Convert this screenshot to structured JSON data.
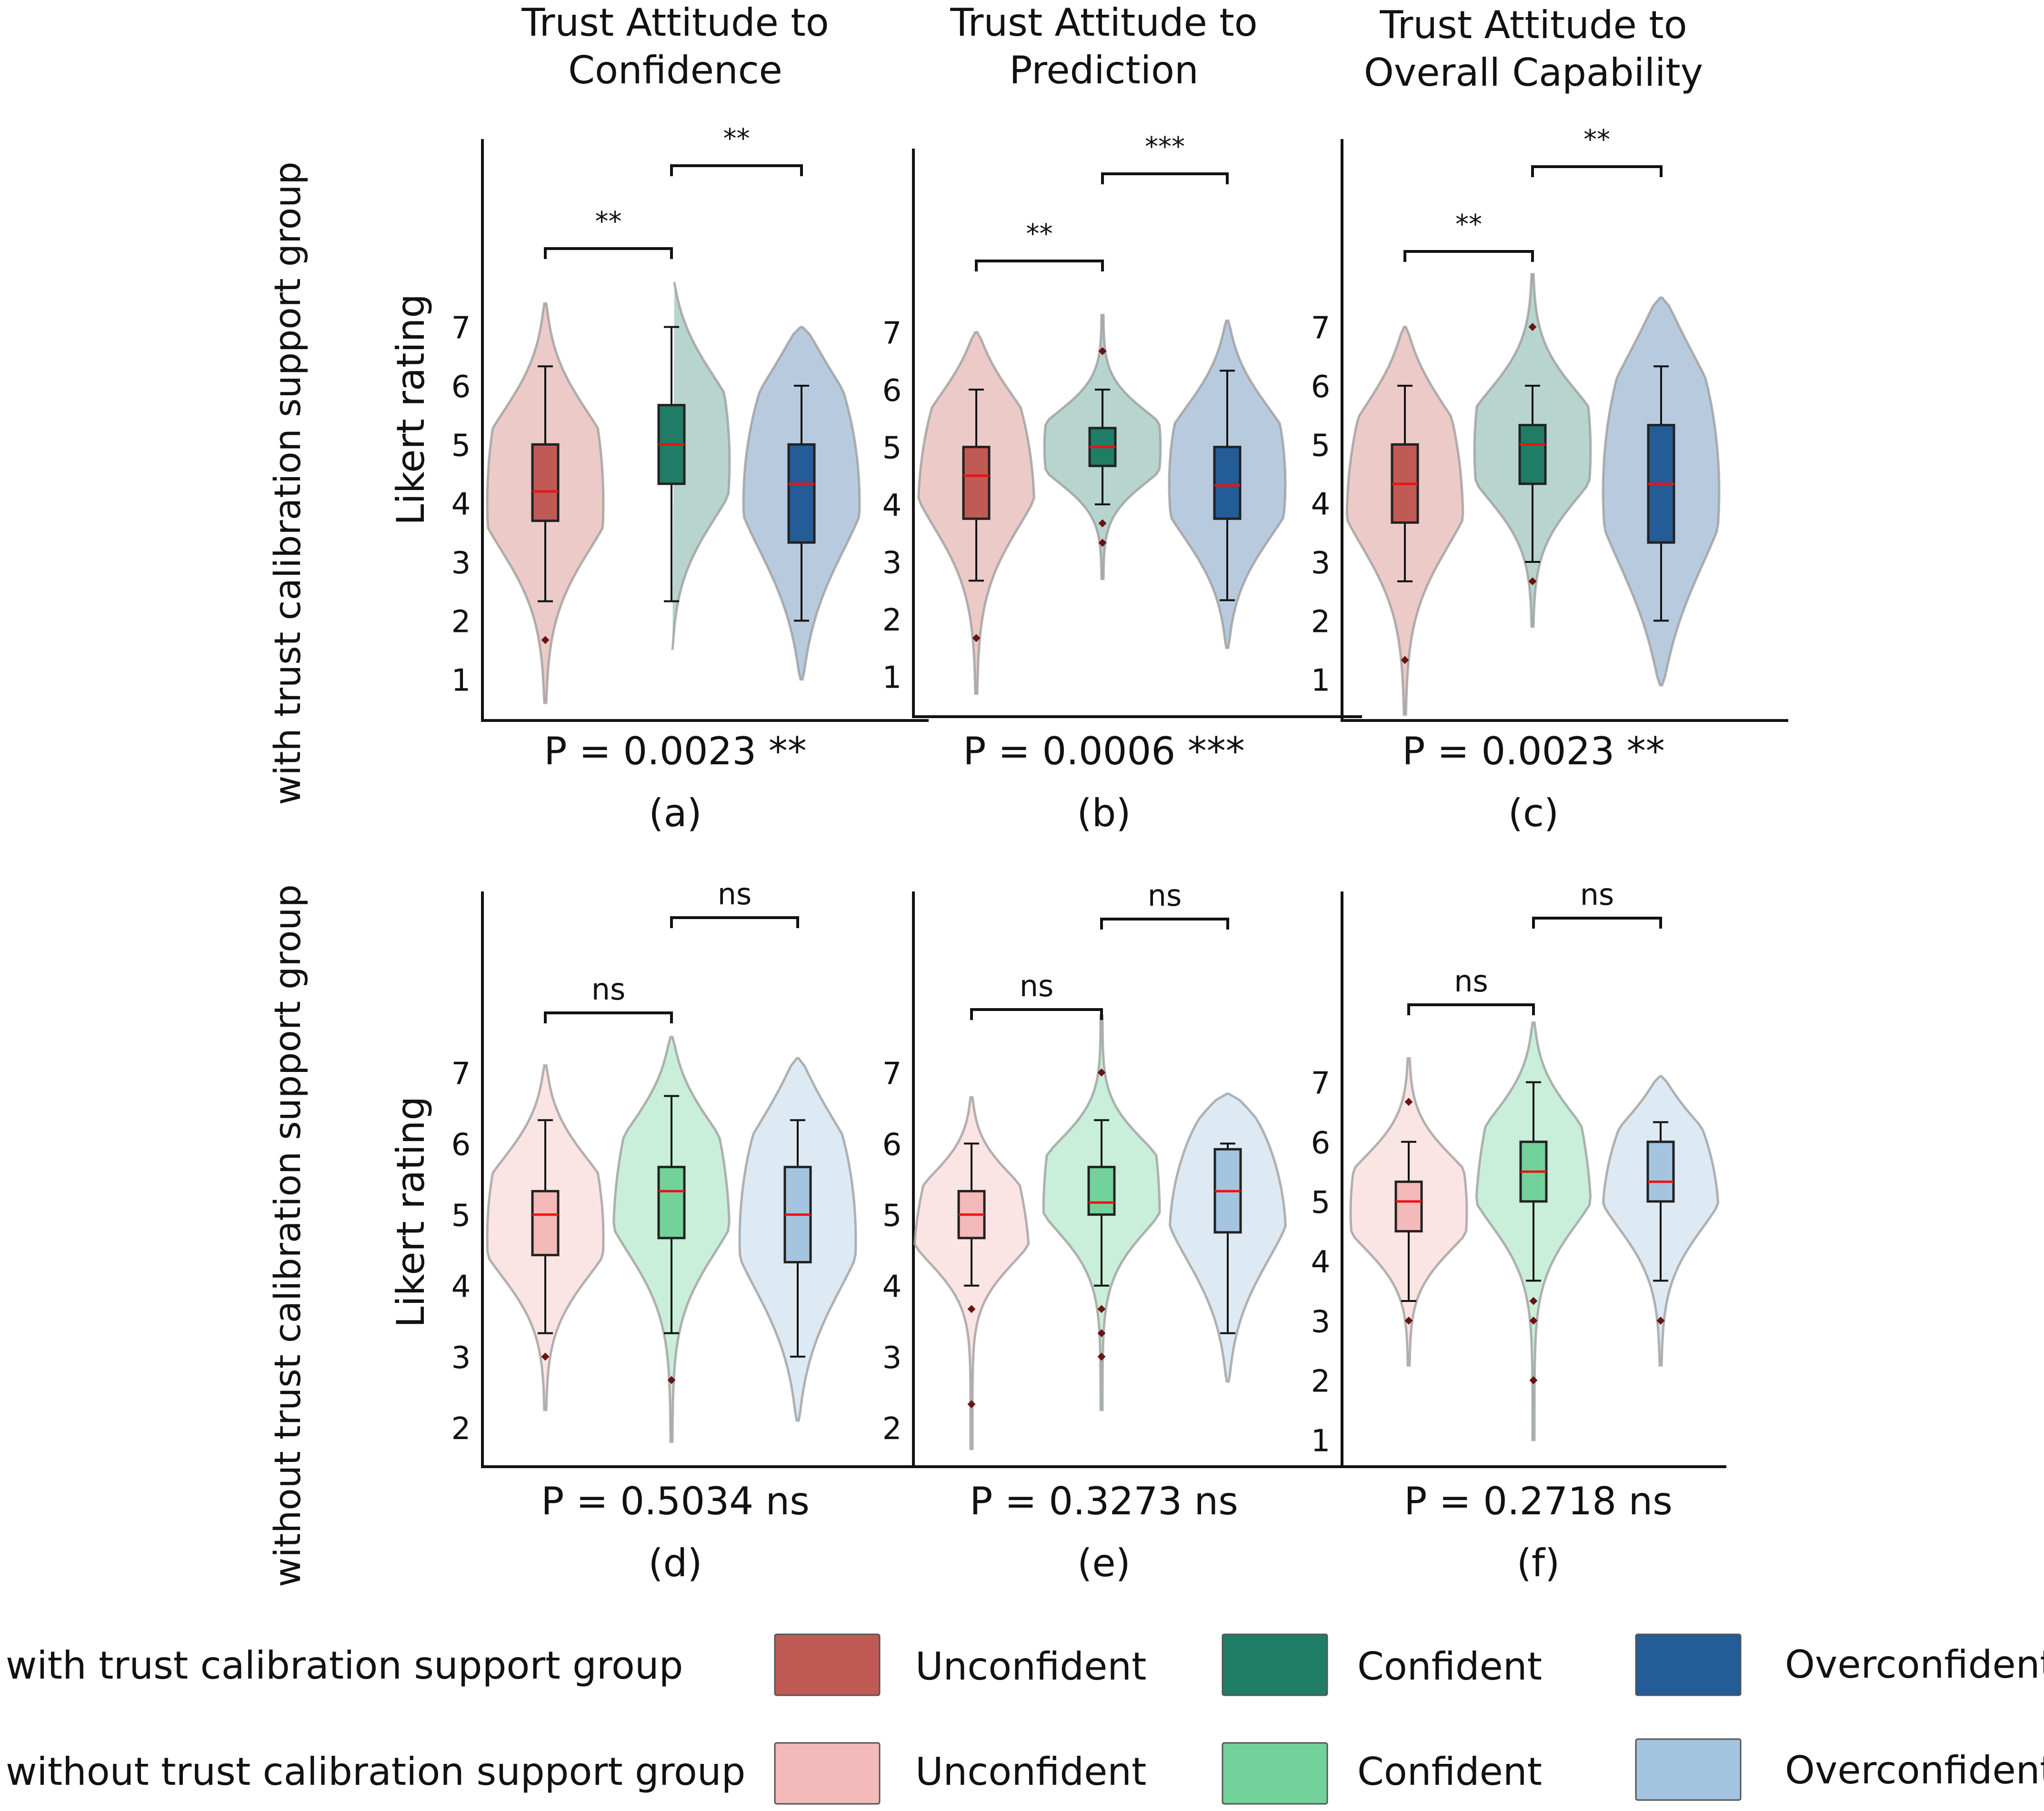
{
  "figure": {
    "row_labels": [
      "with trust calibration support group",
      "without trust calibration support group"
    ],
    "ylabel": "Likert rating"
  },
  "legend": {
    "groups": [
      "with trust calibration support group",
      "without trust calibration support group"
    ],
    "categories": [
      "Unconfident",
      "Confident",
      "Overconfident"
    ]
  },
  "colors": {
    "with": [
      "#c05a55",
      "#1f7d66",
      "#235c97"
    ],
    "without": [
      "#f4b9b9",
      "#72d39a",
      "#a5c4e0"
    ]
  },
  "chart_data": [
    {
      "id": "a",
      "type": "violin",
      "title": [
        "Trust Attitude to",
        "Confidence"
      ],
      "group": "with",
      "caption": "(a)",
      "pvalue": "P = 0.0023 **",
      "yticks": [
        1,
        2,
        3,
        4,
        5,
        6,
        7
      ],
      "ylim": [
        0.3,
        10.2
      ],
      "brackets": [
        "**",
        "**"
      ],
      "series": [
        {
          "name": "Unconfident",
          "q1": 3.7,
          "median": 4.2,
          "q3": 5.0,
          "whisker_low": 2.33,
          "whisker_high": 6.33,
          "fliers": [
            1.67
          ],
          "violin_min": 0.6,
          "violin_max": 7.4,
          "mode": 4.5
        },
        {
          "name": "Confident",
          "q1": 4.33,
          "median": 5.0,
          "q3": 5.67,
          "whisker_low": 2.33,
          "whisker_high": 7.0,
          "fliers": [],
          "violin_min": 1.5,
          "violin_max": 7.9,
          "mode": 5.0
        },
        {
          "name": "Overconfident",
          "q1": 3.33,
          "median": 4.33,
          "q3": 5.0,
          "whisker_low": 2.0,
          "whisker_high": 6.0,
          "fliers": [],
          "violin_min": 1.0,
          "violin_max": 7.0,
          "mode": 5.0
        }
      ]
    },
    {
      "id": "b",
      "type": "violin",
      "title": [
        "Trust Attitude to",
        "Prediction"
      ],
      "group": "with",
      "caption": "(b)",
      "pvalue": "P = 0.0006 ***",
      "yticks": [
        1,
        2,
        3,
        4,
        5,
        6,
        7
      ],
      "ylim": [
        0.3,
        10.2
      ],
      "brackets": [
        "**",
        "***"
      ],
      "series": [
        {
          "name": "Unconfident",
          "q1": 3.75,
          "median": 4.5,
          "q3": 5.0,
          "whisker_low": 2.67,
          "whisker_high": 6.0,
          "fliers": [
            1.67
          ],
          "violin_min": 0.7,
          "violin_max": 7.0,
          "mode": 5.0
        },
        {
          "name": "Confident",
          "q1": 4.67,
          "median": 5.0,
          "q3": 5.33,
          "whisker_low": 4.0,
          "whisker_high": 6.0,
          "fliers": [
            6.67,
            3.67,
            3.33
          ],
          "violin_min": 2.7,
          "violin_max": 7.3,
          "mode": 5.0
        },
        {
          "name": "Overconfident",
          "q1": 3.75,
          "median": 4.33,
          "q3": 5.0,
          "whisker_low": 2.33,
          "whisker_high": 6.33,
          "fliers": [],
          "violin_min": 1.5,
          "violin_max": 7.2,
          "mode": 4.67
        }
      ]
    },
    {
      "id": "c",
      "type": "violin",
      "title": [
        "Trust Attitude to",
        "Overall Capability"
      ],
      "group": "with",
      "caption": "(c)",
      "pvalue": "P = 0.0023 **",
      "yticks": [
        1,
        2,
        3,
        4,
        5,
        6,
        7
      ],
      "ylim": [
        0.3,
        10.2
      ],
      "brackets": [
        "**",
        "**"
      ],
      "series": [
        {
          "name": "Unconfident",
          "q1": 3.67,
          "median": 4.33,
          "q3": 5.0,
          "whisker_low": 2.67,
          "whisker_high": 6.0,
          "fliers": [
            1.33
          ],
          "violin_min": 0.4,
          "violin_max": 7.0,
          "mode": 4.67
        },
        {
          "name": "Confident",
          "q1": 4.33,
          "median": 5.0,
          "q3": 5.33,
          "whisker_low": 3.0,
          "whisker_high": 6.0,
          "fliers": [
            7.0,
            2.67
          ],
          "violin_min": 1.9,
          "violin_max": 7.9,
          "mode": 5.0
        },
        {
          "name": "Overconfident",
          "q1": 3.33,
          "median": 4.33,
          "q3": 5.33,
          "whisker_low": 2.0,
          "whisker_high": 6.33,
          "fliers": [],
          "violin_min": 0.9,
          "violin_max": 7.5,
          "mode": 5.0
        }
      ]
    },
    {
      "id": "d",
      "type": "violin",
      "title": [],
      "group": "without",
      "caption": "(d)",
      "pvalue": "P = 0.5034 ns",
      "yticks": [
        2,
        3,
        4,
        5,
        6,
        7
      ],
      "ylim": [
        1.45,
        9.55
      ],
      "brackets": [
        "ns",
        "ns"
      ],
      "series": [
        {
          "name": "Unconfident",
          "q1": 4.43,
          "median": 5.0,
          "q3": 5.33,
          "whisker_low": 3.33,
          "whisker_high": 6.33,
          "fliers": [
            3.0
          ],
          "violin_min": 2.25,
          "violin_max": 7.1,
          "mode": 5.0
        },
        {
          "name": "Confident",
          "q1": 4.67,
          "median": 5.33,
          "q3": 5.67,
          "whisker_low": 3.33,
          "whisker_high": 6.67,
          "fliers": [
            2.67
          ],
          "violin_min": 1.8,
          "violin_max": 7.5,
          "mode": 5.5
        },
        {
          "name": "Overconfident",
          "q1": 4.33,
          "median": 5.0,
          "q3": 5.67,
          "whisker_low": 3.0,
          "whisker_high": 6.33,
          "fliers": [],
          "violin_min": 2.1,
          "violin_max": 7.2,
          "mode": 5.33
        }
      ]
    },
    {
      "id": "e",
      "type": "violin",
      "title": [],
      "group": "without",
      "caption": "(e)",
      "pvalue": "P = 0.3273 ns",
      "yticks": [
        2,
        3,
        4,
        5,
        6,
        7
      ],
      "ylim": [
        1.45,
        9.55
      ],
      "brackets": [
        "ns",
        "ns"
      ],
      "series": [
        {
          "name": "Unconfident",
          "q1": 4.67,
          "median": 5.0,
          "q3": 5.33,
          "whisker_low": 4.0,
          "whisker_high": 6.0,
          "fliers": [
            3.67,
            2.33
          ],
          "violin_min": 1.7,
          "violin_max": 6.65,
          "mode": 5.0
        },
        {
          "name": "Confident",
          "q1": 5.0,
          "median": 5.17,
          "q3": 5.67,
          "whisker_low": 4.0,
          "whisker_high": 6.33,
          "fliers": [
            7.0,
            3.67,
            3.33,
            3.0
          ],
          "violin_min": 2.25,
          "violin_max": 7.8,
          "mode": 5.5
        },
        {
          "name": "Overconfident",
          "q1": 4.75,
          "median": 5.33,
          "q3": 5.92,
          "whisker_low": 3.33,
          "whisker_high": 6.0,
          "fliers": [],
          "violin_min": 2.65,
          "violin_max": 6.7,
          "mode": 5.67
        }
      ]
    },
    {
      "id": "f",
      "type": "violin",
      "title": [],
      "group": "without",
      "caption": "(f)",
      "pvalue": "P = 0.2718 ns",
      "yticks": [
        1,
        2,
        3,
        4,
        5,
        6,
        7
      ],
      "ylim": [
        0.55,
        10.2
      ],
      "brackets": [
        "ns",
        "ns"
      ],
      "series": [
        {
          "name": "Unconfident",
          "q1": 4.5,
          "median": 5.0,
          "q3": 5.33,
          "whisker_low": 3.33,
          "whisker_high": 6.0,
          "fliers": [
            6.67,
            3.0
          ],
          "violin_min": 2.25,
          "violin_max": 7.4,
          "mode": 5.0
        },
        {
          "name": "Confident",
          "q1": 5.0,
          "median": 5.5,
          "q3": 6.0,
          "whisker_low": 3.67,
          "whisker_high": 7.0,
          "fliers": [
            3.33,
            3.0,
            2.0
          ],
          "violin_min": 1.0,
          "violin_max": 8.0,
          "mode": 5.67
        },
        {
          "name": "Overconfident",
          "q1": 5.0,
          "median": 5.33,
          "q3": 6.0,
          "whisker_low": 3.67,
          "whisker_high": 6.33,
          "fliers": [
            3.0
          ],
          "violin_min": 2.25,
          "violin_max": 7.1,
          "mode": 5.67
        }
      ]
    }
  ]
}
